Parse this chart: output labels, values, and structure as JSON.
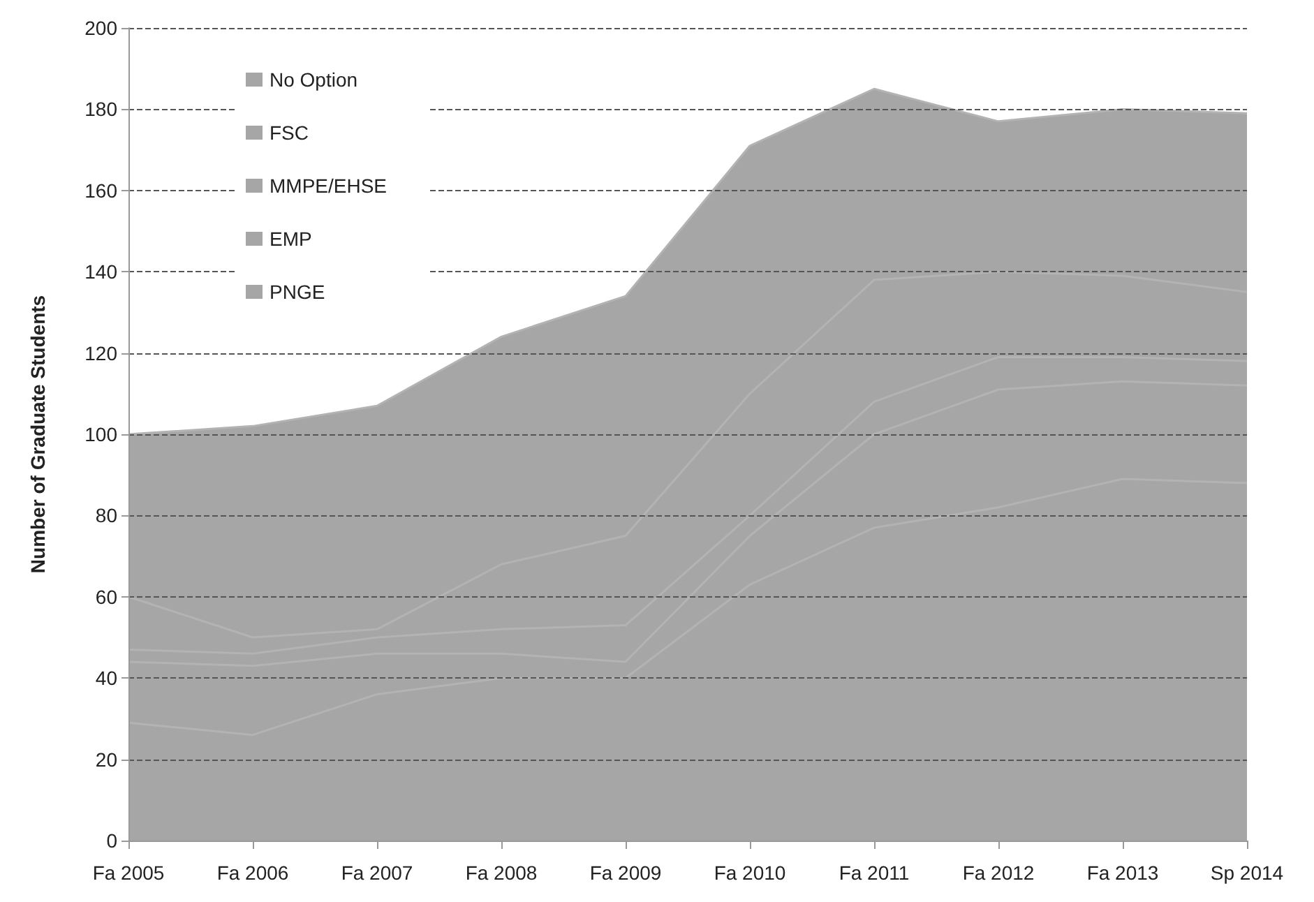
{
  "chart_data": {
    "type": "area",
    "stacked": true,
    "ylabel": "Number of Graduate Students",
    "categories": [
      "Fa 2005",
      "Fa 2006",
      "Fa 2007",
      "Fa 2008",
      "Fa 2009",
      "Fa 2010",
      "Fa 2011",
      "Fa 2012",
      "Fa 2013",
      "Sp 2014"
    ],
    "series": [
      {
        "name": "PNGE",
        "color": "#a6a6a6",
        "values": [
          29,
          26,
          36,
          40,
          40,
          63,
          77,
          82,
          89,
          88
        ]
      },
      {
        "name": "EMP",
        "color": "#a6a6a6",
        "values": [
          15,
          17,
          10,
          6,
          4,
          12,
          23,
          29,
          24,
          24
        ]
      },
      {
        "name": "MMPE/EHSE",
        "color": "#a6a6a6",
        "values": [
          3,
          3,
          4,
          6,
          9,
          5,
          8,
          8,
          6,
          6
        ]
      },
      {
        "name": "FSC",
        "color": "#a6a6a6",
        "values": [
          13,
          4,
          2,
          16,
          22,
          30,
          30,
          21,
          20,
          17
        ]
      },
      {
        "name": "No Option",
        "color": "#a6a6a6",
        "values": [
          40,
          52,
          55,
          56,
          59,
          61,
          47,
          37,
          41,
          44
        ]
      }
    ],
    "ylim": [
      0,
      200
    ],
    "yticks": [
      0,
      20,
      40,
      60,
      80,
      100,
      120,
      140,
      160,
      180,
      200
    ],
    "grid": "y",
    "legend": "top left",
    "marker": "none"
  }
}
